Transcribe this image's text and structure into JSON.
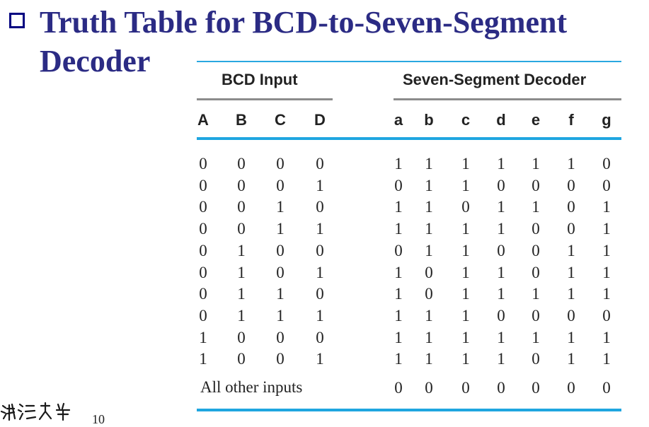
{
  "title": {
    "line1": "Truth Table for BCD-to-Seven-Segment",
    "line2": "Decoder"
  },
  "table": {
    "group_input": "BCD Input",
    "group_output": "Seven-Segment Decoder",
    "input_headers": [
      "A",
      "B",
      "C",
      "D"
    ],
    "output_headers": [
      "a",
      "b",
      "c",
      "d",
      "e",
      "f",
      "g"
    ],
    "rows": [
      {
        "in": [
          "0",
          "0",
          "0",
          "0"
        ],
        "out": [
          "1",
          "1",
          "1",
          "1",
          "1",
          "1",
          "0"
        ]
      },
      {
        "in": [
          "0",
          "0",
          "0",
          "1"
        ],
        "out": [
          "0",
          "1",
          "1",
          "0",
          "0",
          "0",
          "0"
        ]
      },
      {
        "in": [
          "0",
          "0",
          "1",
          "0"
        ],
        "out": [
          "1",
          "1",
          "0",
          "1",
          "1",
          "0",
          "1"
        ]
      },
      {
        "in": [
          "0",
          "0",
          "1",
          "1"
        ],
        "out": [
          "1",
          "1",
          "1",
          "1",
          "0",
          "0",
          "1"
        ]
      },
      {
        "in": [
          "0",
          "1",
          "0",
          "0"
        ],
        "out": [
          "0",
          "1",
          "1",
          "0",
          "0",
          "1",
          "1"
        ]
      },
      {
        "in": [
          "0",
          "1",
          "0",
          "1"
        ],
        "out": [
          "1",
          "0",
          "1",
          "1",
          "0",
          "1",
          "1"
        ]
      },
      {
        "in": [
          "0",
          "1",
          "1",
          "0"
        ],
        "out": [
          "1",
          "0",
          "1",
          "1",
          "1",
          "1",
          "1"
        ]
      },
      {
        "in": [
          "0",
          "1",
          "1",
          "1"
        ],
        "out": [
          "1",
          "1",
          "1",
          "0",
          "0",
          "0",
          "0"
        ]
      },
      {
        "in": [
          "1",
          "0",
          "0",
          "0"
        ],
        "out": [
          "1",
          "1",
          "1",
          "1",
          "1",
          "1",
          "1"
        ]
      },
      {
        "in": [
          "1",
          "0",
          "0",
          "1"
        ],
        "out": [
          "1",
          "1",
          "1",
          "1",
          "0",
          "1",
          "1"
        ]
      }
    ],
    "other_label": "All other inputs",
    "other_out": [
      "0",
      "0",
      "0",
      "0",
      "0",
      "0",
      "0"
    ]
  },
  "footer": {
    "page_number": "10"
  }
}
